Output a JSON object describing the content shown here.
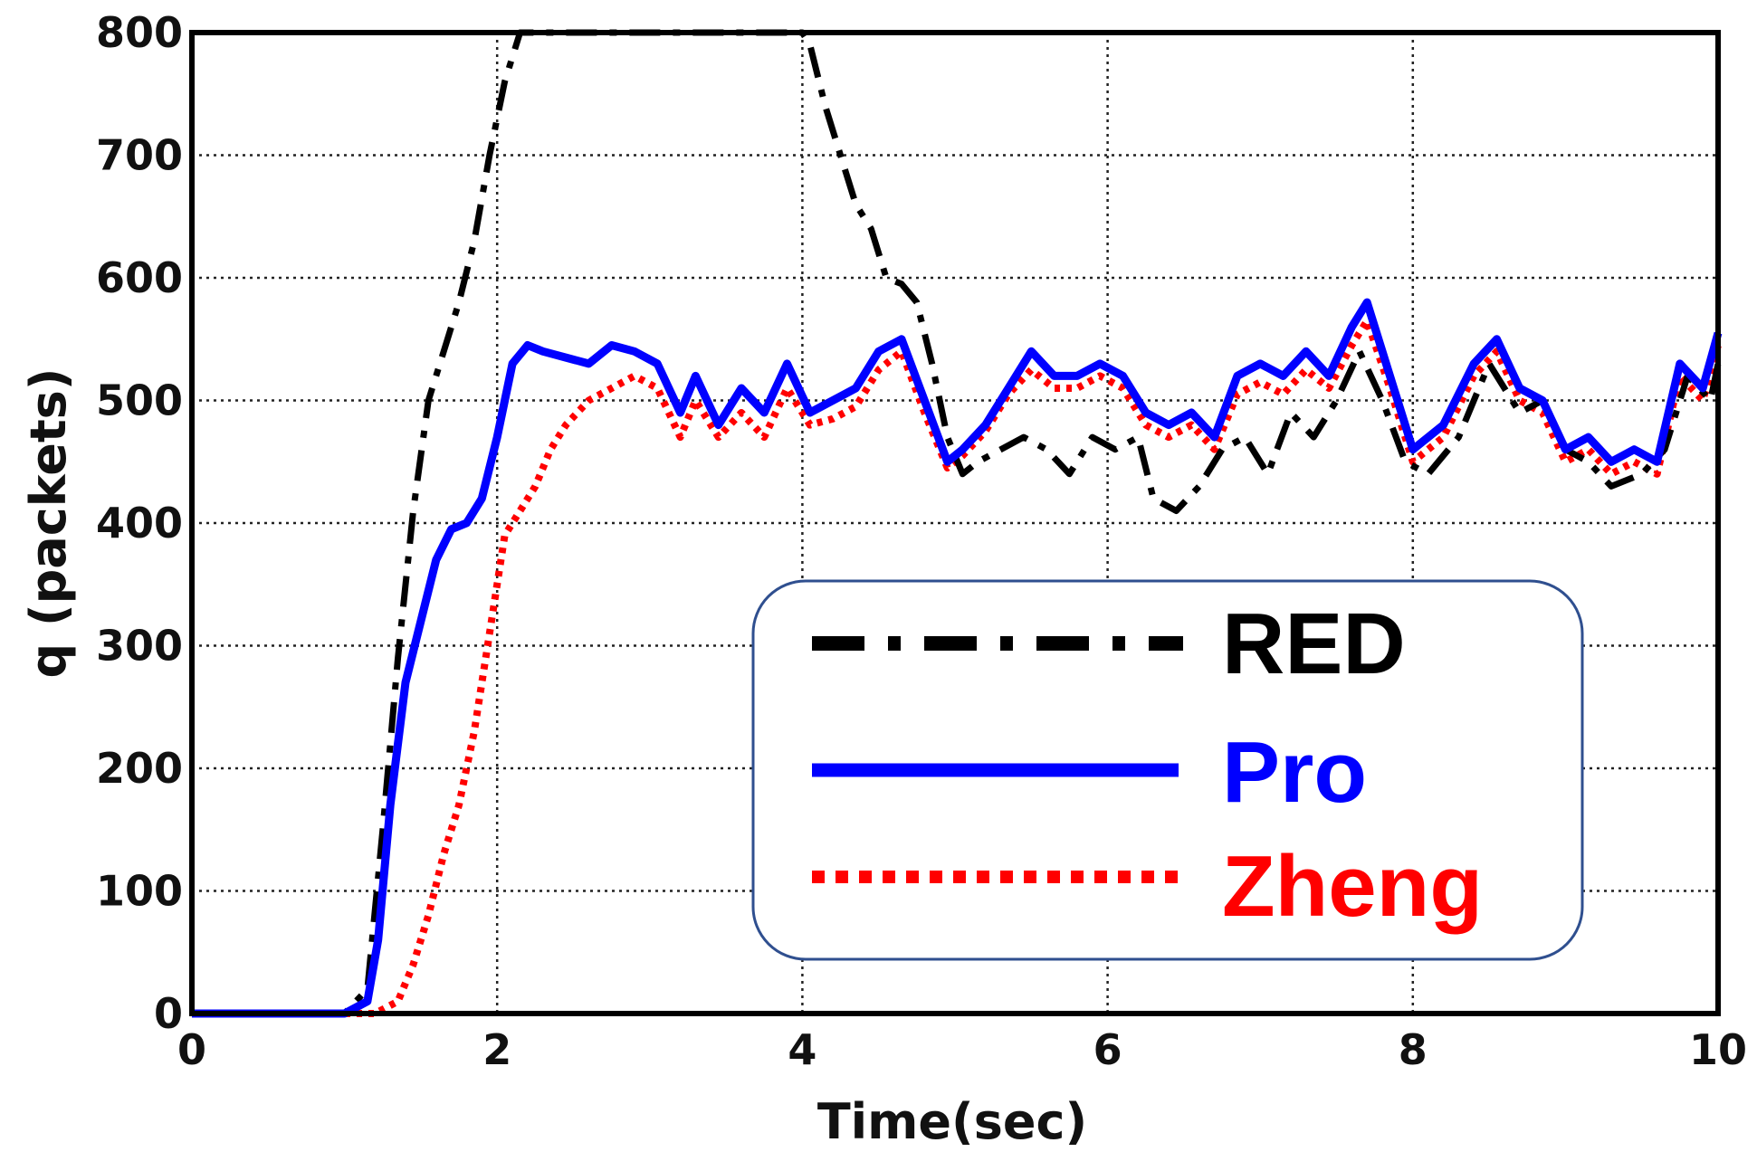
{
  "chart_data": {
    "type": "line",
    "title": "",
    "xlabel": "Time(sec)",
    "ylabel": "q (packets)",
    "xlim": [
      0,
      10
    ],
    "ylim": [
      0,
      800
    ],
    "xticks": [
      0,
      2,
      4,
      6,
      8,
      10
    ],
    "yticks": [
      0,
      100,
      200,
      300,
      400,
      500,
      600,
      700,
      800
    ],
    "grid": true,
    "legend_position": "bottom-right",
    "series": [
      {
        "name": "RED",
        "color": "#000000",
        "style": "dash-dot",
        "x": [
          0,
          1.0,
          1.15,
          1.25,
          1.35,
          1.45,
          1.55,
          1.65,
          1.75,
          1.85,
          1.95,
          2.05,
          2.15,
          2.25,
          3.0,
          3.5,
          4.0,
          4.05,
          4.15,
          4.25,
          4.35,
          4.45,
          4.55,
          4.65,
          4.75,
          4.85,
          4.95,
          5.05,
          5.15,
          5.3,
          5.45,
          5.6,
          5.75,
          5.9,
          6.05,
          6.2,
          6.3,
          6.45,
          6.6,
          6.75,
          6.9,
          7.05,
          7.2,
          7.35,
          7.5,
          7.65,
          7.8,
          7.95,
          8.1,
          8.3,
          8.5,
          8.7,
          8.85,
          9.0,
          9.15,
          9.3,
          9.5,
          9.65,
          9.8,
          9.95,
          10.0
        ],
        "y": [
          0,
          0,
          20,
          150,
          290,
          410,
          500,
          540,
          580,
          630,
          700,
          760,
          800,
          800,
          800,
          800,
          800,
          790,
          740,
          700,
          660,
          640,
          600,
          595,
          580,
          530,
          470,
          440,
          450,
          460,
          470,
          460,
          440,
          470,
          460,
          470,
          420,
          410,
          430,
          460,
          470,
          440,
          490,
          470,
          500,
          540,
          500,
          450,
          440,
          470,
          530,
          490,
          500,
          460,
          450,
          430,
          440,
          460,
          520,
          500,
          530
        ]
      },
      {
        "name": "Pro",
        "color": "#0000ff",
        "style": "solid",
        "x": [
          0,
          1.0,
          1.15,
          1.22,
          1.3,
          1.4,
          1.5,
          1.6,
          1.7,
          1.8,
          1.9,
          2.0,
          2.1,
          2.2,
          2.3,
          2.45,
          2.6,
          2.75,
          2.9,
          3.05,
          3.2,
          3.3,
          3.45,
          3.6,
          3.75,
          3.9,
          4.05,
          4.2,
          4.35,
          4.5,
          4.65,
          4.8,
          4.95,
          5.05,
          5.2,
          5.35,
          5.5,
          5.65,
          5.8,
          5.95,
          6.1,
          6.25,
          6.4,
          6.55,
          6.7,
          6.85,
          7.0,
          7.15,
          7.3,
          7.45,
          7.6,
          7.7,
          7.85,
          8.0,
          8.2,
          8.4,
          8.55,
          8.7,
          8.85,
          9.0,
          9.15,
          9.3,
          9.45,
          9.6,
          9.75,
          9.9,
          10.0
        ],
        "y": [
          0,
          0,
          10,
          60,
          170,
          270,
          320,
          370,
          395,
          400,
          420,
          470,
          530,
          545,
          540,
          535,
          530,
          545,
          540,
          530,
          490,
          520,
          480,
          510,
          490,
          530,
          490,
          500,
          510,
          540,
          550,
          500,
          450,
          460,
          480,
          510,
          540,
          520,
          520,
          530,
          520,
          490,
          480,
          490,
          470,
          520,
          530,
          520,
          540,
          520,
          560,
          580,
          520,
          460,
          480,
          530,
          550,
          510,
          500,
          460,
          470,
          450,
          460,
          450,
          530,
          510,
          555
        ]
      },
      {
        "name": "Zheng",
        "color": "#ff0000",
        "style": "dotted",
        "x": [
          0,
          1.0,
          1.2,
          1.35,
          1.45,
          1.55,
          1.65,
          1.75,
          1.85,
          1.95,
          2.05,
          2.15,
          2.25,
          2.35,
          2.45,
          2.6,
          2.75,
          2.9,
          3.05,
          3.2,
          3.3,
          3.45,
          3.6,
          3.75,
          3.9,
          4.05,
          4.2,
          4.35,
          4.5,
          4.65,
          4.8,
          4.95,
          5.05,
          5.2,
          5.35,
          5.5,
          5.65,
          5.8,
          5.95,
          6.1,
          6.25,
          6.4,
          6.55,
          6.7,
          6.85,
          7.0,
          7.15,
          7.3,
          7.45,
          7.6,
          7.7,
          7.85,
          8.0,
          8.2,
          8.4,
          8.55,
          8.7,
          8.85,
          9.0,
          9.15,
          9.3,
          9.45,
          9.6,
          9.75,
          9.9,
          10.0
        ],
        "y": [
          0,
          0,
          0,
          10,
          40,
          80,
          130,
          170,
          230,
          310,
          390,
          410,
          430,
          460,
          480,
          500,
          510,
          520,
          510,
          470,
          500,
          470,
          490,
          470,
          510,
          480,
          485,
          495,
          525,
          540,
          490,
          445,
          455,
          475,
          505,
          525,
          510,
          510,
          520,
          510,
          480,
          470,
          480,
          460,
          505,
          515,
          505,
          525,
          510,
          545,
          565,
          510,
          450,
          470,
          520,
          540,
          500,
          490,
          450,
          460,
          440,
          450,
          440,
          520,
          500,
          545
        ]
      }
    ]
  }
}
